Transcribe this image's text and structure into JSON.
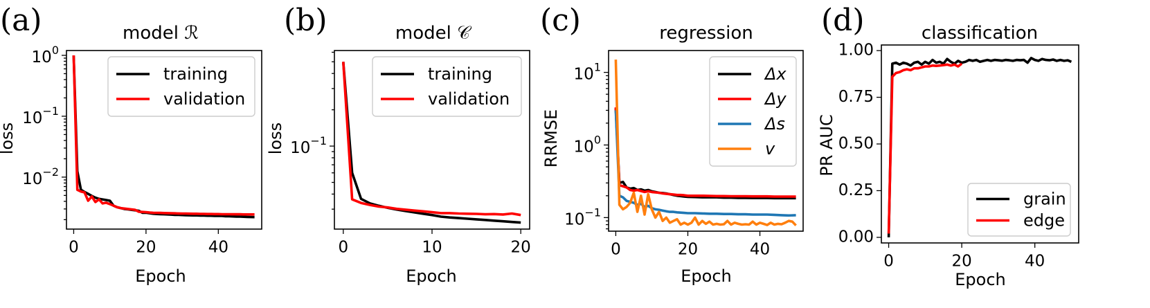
{
  "chart_data": [
    {
      "panel_label": "(a)",
      "type": "line",
      "title": "model ℛ",
      "xlabel": "Epoch",
      "ylabel": "loss",
      "yscale": "log",
      "xlim": [
        -2,
        52
      ],
      "ylim": [
        0.0014,
        1.2
      ],
      "xticks": [
        0,
        20,
        40
      ],
      "xtick_labels": [
        "0",
        "20",
        "40"
      ],
      "yticks": [
        1,
        0.1,
        0.01
      ],
      "ytick_labels": [
        "10^0",
        "10^-1",
        "10^-2"
      ],
      "legend_position": "top-right",
      "series": [
        {
          "name": "training",
          "color": "#000000",
          "x": [
            0,
            1,
            2,
            3,
            4,
            5,
            6,
            7,
            8,
            9,
            10,
            11,
            12,
            13,
            14,
            15,
            16,
            17,
            18,
            19,
            20,
            21,
            22,
            23,
            24,
            25,
            26,
            27,
            28,
            29,
            30,
            31,
            32,
            33,
            34,
            35,
            36,
            37,
            38,
            39,
            40,
            41,
            42,
            43,
            44,
            45,
            46,
            47,
            48,
            49,
            50
          ],
          "y": [
            1.0,
            0.0125,
            0.0062,
            0.0057,
            0.0053,
            0.0049,
            0.0046,
            0.0044,
            0.0043,
            0.0042,
            0.0041,
            0.0034,
            0.0032,
            0.0031,
            0.003,
            0.00295,
            0.0029,
            0.00285,
            0.0028,
            0.0026,
            0.0026,
            0.00255,
            0.0025,
            0.00248,
            0.00246,
            0.00245,
            0.00244,
            0.00242,
            0.0024,
            0.0024,
            0.00238,
            0.00237,
            0.00236,
            0.00235,
            0.00235,
            0.00234,
            0.00233,
            0.00232,
            0.00232,
            0.00231,
            0.0023,
            0.0023,
            0.00228,
            0.00227,
            0.00226,
            0.00225,
            0.00224,
            0.00223,
            0.00222,
            0.00221,
            0.0022
          ]
        },
        {
          "name": "validation",
          "color": "#ff0000",
          "x": [
            0,
            1,
            2,
            3,
            4,
            5,
            6,
            7,
            8,
            9,
            10,
            11,
            12,
            13,
            14,
            15,
            16,
            17,
            18,
            19,
            20,
            21,
            22,
            23,
            24,
            25,
            26,
            27,
            28,
            29,
            30,
            31,
            32,
            33,
            34,
            35,
            36,
            37,
            38,
            39,
            40,
            41,
            42,
            43,
            44,
            45,
            46,
            47,
            48,
            49,
            50
          ],
          "y": [
            1.0,
            0.0062,
            0.0058,
            0.0056,
            0.0041,
            0.0048,
            0.0039,
            0.0043,
            0.0037,
            0.0038,
            0.0036,
            0.0034,
            0.0032,
            0.0031,
            0.00305,
            0.003,
            0.00295,
            0.0029,
            0.0027,
            0.00268,
            0.00266,
            0.00262,
            0.0026,
            0.00259,
            0.00258,
            0.00257,
            0.00256,
            0.00255,
            0.00254,
            0.00253,
            0.00252,
            0.00252,
            0.00251,
            0.0025,
            0.0025,
            0.00249,
            0.00249,
            0.00248,
            0.00248,
            0.00247,
            0.00247,
            0.00246,
            0.00246,
            0.00246,
            0.00245,
            0.00245,
            0.00245,
            0.00244,
            0.00244,
            0.00244,
            0.00244
          ]
        }
      ]
    },
    {
      "panel_label": "(b)",
      "type": "line",
      "title": "model 𝒞",
      "xlabel": "Epoch",
      "ylabel": "loss",
      "yscale": "log",
      "xlim": [
        -1,
        21
      ],
      "ylim": [
        0.0205,
        0.62
      ],
      "xticks": [
        0,
        10,
        20
      ],
      "xtick_labels": [
        "0",
        "10",
        "20"
      ],
      "yticks": [
        0.1
      ],
      "ytick_labels": [
        "10^-1"
      ],
      "legend_position": "top-right",
      "series": [
        {
          "name": "training",
          "color": "#000000",
          "x": [
            0,
            1,
            2,
            3,
            4,
            5,
            6,
            7,
            8,
            9,
            10,
            11,
            12,
            13,
            14,
            15,
            16,
            17,
            18,
            19,
            20
          ],
          "y": [
            0.5,
            0.06,
            0.0365,
            0.0335,
            0.032,
            0.0308,
            0.0298,
            0.029,
            0.0282,
            0.0275,
            0.0268,
            0.026,
            0.0256,
            0.0253,
            0.025,
            0.0247,
            0.0244,
            0.0241,
            0.0238,
            0.0235,
            0.0232
          ]
        },
        {
          "name": "validation",
          "color": "#ff0000",
          "x": [
            0,
            1,
            2,
            3,
            4,
            5,
            6,
            7,
            8,
            9,
            10,
            11,
            12,
            13,
            14,
            15,
            16,
            17,
            18,
            19,
            20
          ],
          "y": [
            0.5,
            0.0362,
            0.0338,
            0.0325,
            0.0315,
            0.031,
            0.0302,
            0.0297,
            0.0292,
            0.0288,
            0.0283,
            0.0278,
            0.0278,
            0.0276,
            0.0275,
            0.0274,
            0.0272,
            0.0273,
            0.0271,
            0.0276,
            0.0268
          ]
        }
      ]
    },
    {
      "panel_label": "(c)",
      "type": "line",
      "title": "regression",
      "xlabel": "Epoch",
      "ylabel": "RRMSE",
      "yscale": "log",
      "xlim": [
        -2,
        52
      ],
      "ylim": [
        0.065,
        20
      ],
      "xticks": [
        0,
        20,
        40
      ],
      "xtick_labels": [
        "0",
        "20",
        "40"
      ],
      "yticks": [
        10,
        1,
        0.1
      ],
      "ytick_labels": [
        "10^1",
        "10^0",
        "10^-1"
      ],
      "legend_position": "top-right",
      "series": [
        {
          "name": "Δx",
          "color": "#000000",
          "x": [
            0,
            1,
            2,
            3,
            4,
            5,
            6,
            7,
            8,
            9,
            10,
            11,
            12,
            13,
            14,
            15,
            16,
            17,
            18,
            19,
            20,
            22,
            24,
            26,
            28,
            30,
            32,
            34,
            36,
            38,
            40,
            42,
            44,
            46,
            48,
            50
          ],
          "y": [
            3.2,
            0.3,
            0.31,
            0.26,
            0.25,
            0.255,
            0.24,
            0.245,
            0.235,
            0.24,
            0.23,
            0.225,
            0.22,
            0.218,
            0.215,
            0.21,
            0.205,
            0.2,
            0.198,
            0.195,
            0.193,
            0.192,
            0.19,
            0.19,
            0.19,
            0.188,
            0.188,
            0.187,
            0.187,
            0.186,
            0.186,
            0.186,
            0.185,
            0.185,
            0.185,
            0.185
          ]
        },
        {
          "name": "Δy",
          "color": "#ff0000",
          "x": [
            0,
            1,
            2,
            3,
            4,
            5,
            6,
            7,
            8,
            9,
            10,
            11,
            12,
            13,
            14,
            15,
            16,
            17,
            18,
            19,
            20,
            22,
            24,
            26,
            28,
            30,
            32,
            34,
            36,
            38,
            40,
            42,
            44,
            46,
            48,
            50
          ],
          "y": [
            3.3,
            0.28,
            0.27,
            0.26,
            0.24,
            0.235,
            0.24,
            0.232,
            0.225,
            0.23,
            0.225,
            0.222,
            0.22,
            0.215,
            0.212,
            0.21,
            0.208,
            0.205,
            0.205,
            0.203,
            0.2,
            0.2,
            0.2,
            0.199,
            0.198,
            0.198,
            0.197,
            0.197,
            0.197,
            0.196,
            0.196,
            0.196,
            0.195,
            0.195,
            0.195,
            0.195
          ]
        },
        {
          "name": "Δs",
          "color": "#1f77b4",
          "x": [
            0,
            1,
            2,
            3,
            4,
            5,
            6,
            7,
            8,
            9,
            10,
            11,
            12,
            13,
            14,
            15,
            16,
            17,
            18,
            19,
            20,
            22,
            24,
            26,
            28,
            30,
            32,
            34,
            36,
            38,
            40,
            42,
            44,
            46,
            48,
            50
          ],
          "y": [
            3.0,
            0.2,
            0.19,
            0.17,
            0.165,
            0.16,
            0.15,
            0.155,
            0.14,
            0.145,
            0.135,
            0.13,
            0.128,
            0.125,
            0.122,
            0.12,
            0.12,
            0.118,
            0.117,
            0.116,
            0.115,
            0.115,
            0.114,
            0.113,
            0.113,
            0.112,
            0.112,
            0.111,
            0.111,
            0.11,
            0.11,
            0.11,
            0.109,
            0.108,
            0.107,
            0.108
          ]
        },
        {
          "name": "v",
          "color": "#ff7f0e",
          "x": [
            0,
            1,
            2,
            3,
            4,
            5,
            6,
            7,
            8,
            9,
            10,
            11,
            12,
            13,
            14,
            15,
            16,
            17,
            18,
            19,
            20,
            21,
            22,
            23,
            24,
            25,
            26,
            27,
            28,
            29,
            30,
            31,
            32,
            33,
            34,
            35,
            36,
            37,
            38,
            39,
            40,
            41,
            42,
            43,
            44,
            45,
            46,
            47,
            48,
            49,
            50
          ],
          "y": [
            15,
            0.15,
            0.13,
            0.14,
            0.16,
            0.22,
            0.12,
            0.2,
            0.11,
            0.21,
            0.13,
            0.1,
            0.12,
            0.09,
            0.1,
            0.085,
            0.09,
            0.095,
            0.08,
            0.085,
            0.08,
            0.085,
            0.1,
            0.08,
            0.09,
            0.082,
            0.088,
            0.08,
            0.082,
            0.08,
            0.081,
            0.09,
            0.08,
            0.085,
            0.082,
            0.08,
            0.081,
            0.08,
            0.088,
            0.08,
            0.085,
            0.082,
            0.079,
            0.085,
            0.08,
            0.082,
            0.081,
            0.085,
            0.09,
            0.088,
            0.078
          ]
        }
      ]
    },
    {
      "panel_label": "(d)",
      "type": "line",
      "title": "classification",
      "xlabel": "Epoch",
      "ylabel": "PR AUC",
      "yscale": "linear",
      "xlim": [
        -2,
        52
      ],
      "ylim": [
        -0.03,
        1.03
      ],
      "xticks": [
        0,
        20,
        40
      ],
      "xtick_labels": [
        "0",
        "20",
        "40"
      ],
      "yticks": [
        0,
        0.25,
        0.5,
        0.75,
        1.0
      ],
      "ytick_labels": [
        "0.00",
        "0.25",
        "0.50",
        "0.75",
        "1.00"
      ],
      "legend_position": "bottom-right",
      "series": [
        {
          "name": "grain",
          "color": "#000000",
          "x": [
            0,
            1,
            2,
            3,
            4,
            5,
            6,
            7,
            8,
            9,
            10,
            11,
            12,
            13,
            14,
            15,
            16,
            17,
            18,
            19,
            20,
            21,
            22,
            23,
            24,
            25,
            26,
            27,
            28,
            29,
            30,
            31,
            32,
            33,
            34,
            35,
            36,
            37,
            38,
            39,
            40,
            41,
            42,
            43,
            44,
            45,
            46,
            47,
            48,
            49,
            50
          ],
          "y": [
            0.0,
            0.93,
            0.935,
            0.925,
            0.935,
            0.93,
            0.92,
            0.935,
            0.94,
            0.925,
            0.94,
            0.93,
            0.95,
            0.935,
            0.94,
            0.93,
            0.955,
            0.94,
            0.93,
            0.945,
            0.935,
            0.94,
            0.95,
            0.945,
            0.95,
            0.94,
            0.945,
            0.95,
            0.945,
            0.95,
            0.948,
            0.946,
            0.95,
            0.948,
            0.945,
            0.95,
            0.948,
            0.95,
            0.935,
            0.96,
            0.95,
            0.945,
            0.955,
            0.95,
            0.948,
            0.952,
            0.945,
            0.95,
            0.945,
            0.948,
            0.94
          ]
        },
        {
          "name": "edge",
          "color": "#ff0000",
          "x": [
            0,
            1,
            2,
            3,
            4,
            5,
            6,
            7,
            8,
            9,
            10,
            11,
            12,
            13,
            14,
            15,
            16,
            17,
            18,
            19,
            20
          ],
          "y": [
            0.02,
            0.86,
            0.88,
            0.885,
            0.895,
            0.9,
            0.895,
            0.905,
            0.905,
            0.91,
            0.915,
            0.915,
            0.92,
            0.918,
            0.92,
            0.922,
            0.925,
            0.92,
            0.925,
            0.915,
            0.93
          ]
        }
      ]
    }
  ]
}
